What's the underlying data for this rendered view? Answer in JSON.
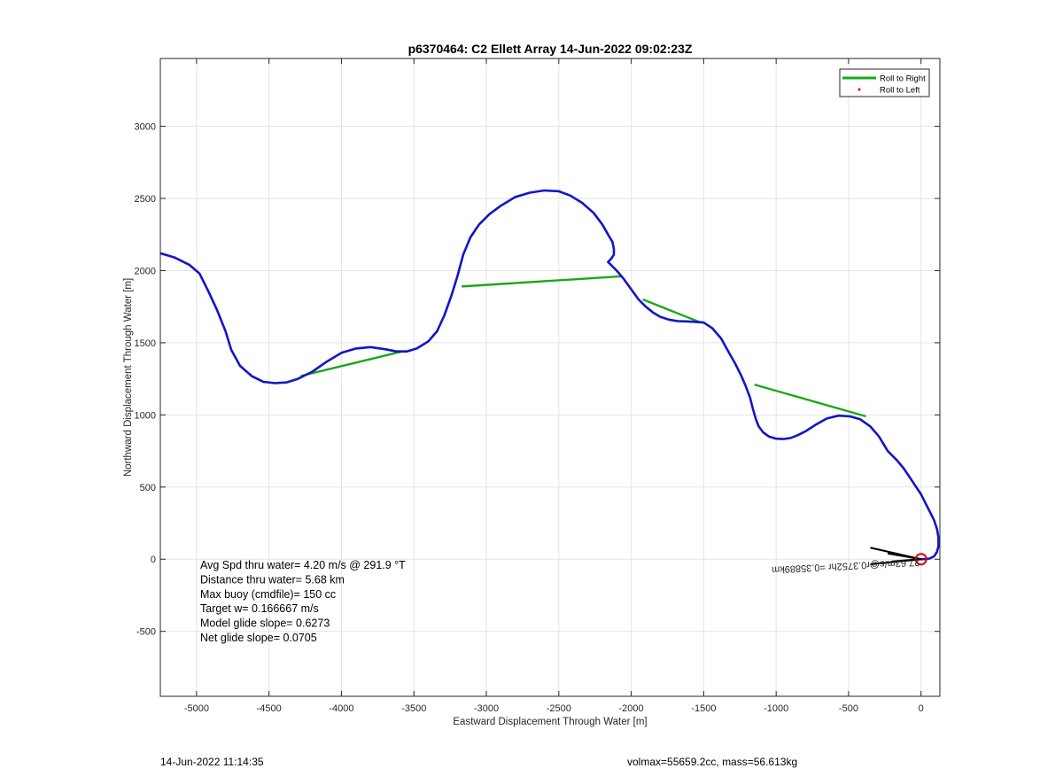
{
  "chart_data": {
    "type": "line",
    "title": "p6370464: C2 Ellett Array 14-Jun-2022 09:02:23Z",
    "xlabel": "Eastward Displacement Through Water [m]",
    "ylabel": "Northward Displacement Through Water [m]",
    "xlim": [
      -5250,
      130
    ],
    "ylim": [
      -950,
      3470
    ],
    "xticks": [
      -5000,
      -4500,
      -4000,
      -3500,
      -3000,
      -2500,
      -2000,
      -1500,
      -1000,
      -500,
      0
    ],
    "yticks": [
      -500,
      0,
      500,
      1000,
      1500,
      2000,
      2500,
      3000
    ],
    "grid": true,
    "legend_position": "top-right",
    "legend": [
      {
        "label": "Roll to Right",
        "color": "#1aa81a",
        "style": "line"
      },
      {
        "label": "Roll to Left",
        "color": "#e00000",
        "style": "dot"
      }
    ],
    "series": [
      {
        "name": "track",
        "color": "#1414c8",
        "x": [
          -5250,
          -5150,
          -5050,
          -4980,
          -4920,
          -4860,
          -4800,
          -4760,
          -4700,
          -4620,
          -4540,
          -4460,
          -4380,
          -4300,
          -4200,
          -4100,
          -4000,
          -3900,
          -3800,
          -3700,
          -3620,
          -3550,
          -3480,
          -3400,
          -3340,
          -3290,
          -3240,
          -3200,
          -3160,
          -3110,
          -3050,
          -2980,
          -2900,
          -2800,
          -2700,
          -2600,
          -2500,
          -2420,
          -2340,
          -2260,
          -2200,
          -2160,
          -2130,
          -2120,
          -2120,
          -2140,
          -2160,
          -2100,
          -2050,
          -2000,
          -1950,
          -1900,
          -1850,
          -1800,
          -1740,
          -1680,
          -1620,
          -1560,
          -1500,
          -1440,
          -1380,
          -1330,
          -1280,
          -1240,
          -1210,
          -1180,
          -1160,
          -1140,
          -1120,
          -1090,
          -1050,
          -1000,
          -950,
          -900,
          -850,
          -800,
          -730,
          -650,
          -570,
          -490,
          -420,
          -350,
          -290,
          -230,
          -170,
          -120,
          -80,
          -40,
          0,
          30,
          60,
          90,
          110,
          120,
          120,
          110,
          90,
          60,
          30,
          10,
          0
        ],
        "y": [
          2120,
          2090,
          2040,
          1980,
          1860,
          1730,
          1580,
          1450,
          1340,
          1270,
          1230,
          1220,
          1225,
          1250,
          1300,
          1370,
          1430,
          1460,
          1470,
          1455,
          1440,
          1440,
          1460,
          1510,
          1580,
          1690,
          1830,
          1960,
          2110,
          2230,
          2320,
          2390,
          2450,
          2510,
          2540,
          2555,
          2550,
          2520,
          2470,
          2400,
          2320,
          2250,
          2200,
          2150,
          2110,
          2080,
          2060,
          2000,
          1940,
          1870,
          1800,
          1750,
          1710,
          1680,
          1660,
          1650,
          1648,
          1645,
          1640,
          1600,
          1530,
          1440,
          1350,
          1270,
          1200,
          1120,
          1040,
          970,
          920,
          880,
          850,
          835,
          833,
          840,
          860,
          885,
          930,
          975,
          995,
          990,
          970,
          920,
          850,
          750,
          690,
          630,
          570,
          510,
          450,
          390,
          330,
          270,
          210,
          150,
          90,
          50,
          20,
          5,
          0,
          0,
          0
        ]
      }
    ],
    "roll_right_segments": [
      {
        "x": [
          -4280,
          -3580
        ],
        "y": [
          1270,
          1440
        ]
      },
      {
        "x": [
          -3170,
          -2070
        ],
        "y": [
          1890,
          1960
        ]
      },
      {
        "x": [
          -1920,
          -1520
        ],
        "y": [
          1800,
          1640
        ]
      },
      {
        "x": [
          -1150,
          -380
        ],
        "y": [
          1210,
          990
        ]
      }
    ],
    "end_marker": {
      "x": 0,
      "y": 0,
      "color": "#e00000"
    },
    "heading_annotation": "27.63m/s@r0.3752hr =0.35889km",
    "heading_vectors": [
      {
        "x": [
          0,
          -350
        ],
        "y": [
          0,
          80
        ]
      },
      {
        "x": [
          0,
          -350
        ],
        "y": [
          0,
          -35
        ]
      },
      {
        "x": [
          0,
          -230
        ],
        "y": [
          0,
          40
        ]
      },
      {
        "x": [
          0,
          -200
        ],
        "y": [
          0,
          -15
        ]
      }
    ],
    "stats": [
      "Avg Spd thru water=  4.20 m/s @ 291.9 °T",
      "Distance thru water=  5.68 km",
      "Max buoy (cmdfile)= 150 cc",
      "Target w= 0.166667 m/s",
      "Model glide slope= 0.6273",
      "Net glide slope= 0.0705"
    ]
  },
  "footer": {
    "timestamp": "14-Jun-2022 11:14:35",
    "volmax": "volmax=55659.2cc, mass=56.613kg"
  }
}
